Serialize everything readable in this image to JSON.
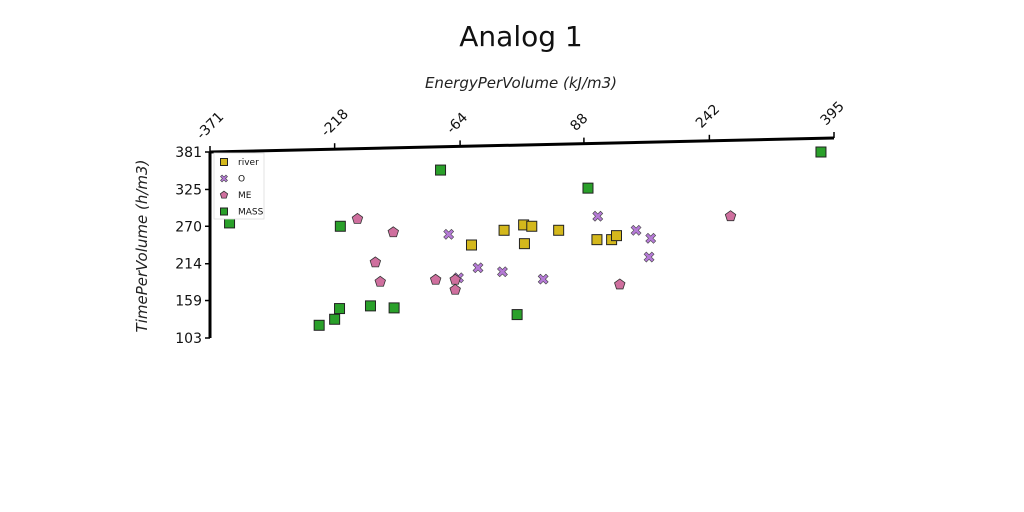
{
  "chart_data": {
    "type": "scatter",
    "title": "Analog 1",
    "xlabel": "EnergyPerVolume (kJ/m3)",
    "ylabel": "TimePerVolume (h/m3)",
    "xticks": [
      "-371",
      "-218",
      "-64",
      "88",
      "242",
      "395"
    ],
    "yticks": [
      "381",
      "325",
      "270",
      "214",
      "159",
      "103"
    ],
    "xlim": [
      -371,
      395
    ],
    "ylim": [
      103,
      381
    ],
    "legend_position": "top-left",
    "series": [
      {
        "name": "river",
        "marker": "square",
        "color": "#d4b81c",
        "points": [
          [
            -50,
            242
          ],
          [
            -10,
            264
          ],
          [
            14,
            272
          ],
          [
            24,
            270
          ],
          [
            15,
            244
          ],
          [
            57,
            264
          ],
          [
            104,
            250
          ],
          [
            122,
            250
          ],
          [
            128,
            256
          ]
        ]
      },
      {
        "name": "O",
        "marker": "x",
        "color": "#b57ad6",
        "points": [
          [
            -78,
            258
          ],
          [
            -66,
            193
          ],
          [
            -42,
            208
          ],
          [
            -12,
            202
          ],
          [
            38,
            191
          ],
          [
            105,
            285
          ],
          [
            152,
            264
          ],
          [
            168,
            224
          ],
          [
            170,
            252
          ]
        ]
      },
      {
        "name": "ME",
        "marker": "pentagon",
        "color": "#cf6f9e",
        "points": [
          [
            -190,
            281
          ],
          [
            -168,
            216
          ],
          [
            -162,
            187
          ],
          [
            -146,
            261
          ],
          [
            -94,
            190
          ],
          [
            -70,
            190
          ],
          [
            -70,
            175
          ],
          [
            132,
            183
          ],
          [
            268,
            285
          ]
        ]
      },
      {
        "name": "MASS",
        "marker": "square",
        "color": "#2aa02a",
        "points": [
          [
            -347,
            275
          ],
          [
            -237,
            122
          ],
          [
            -218,
            131
          ],
          [
            -212,
            147
          ],
          [
            -211,
            270
          ],
          [
            -174,
            151
          ],
          [
            -145,
            148
          ],
          [
            -88,
            354
          ],
          [
            6,
            138
          ],
          [
            93,
            327
          ],
          [
            379,
            381
          ]
        ]
      }
    ]
  }
}
